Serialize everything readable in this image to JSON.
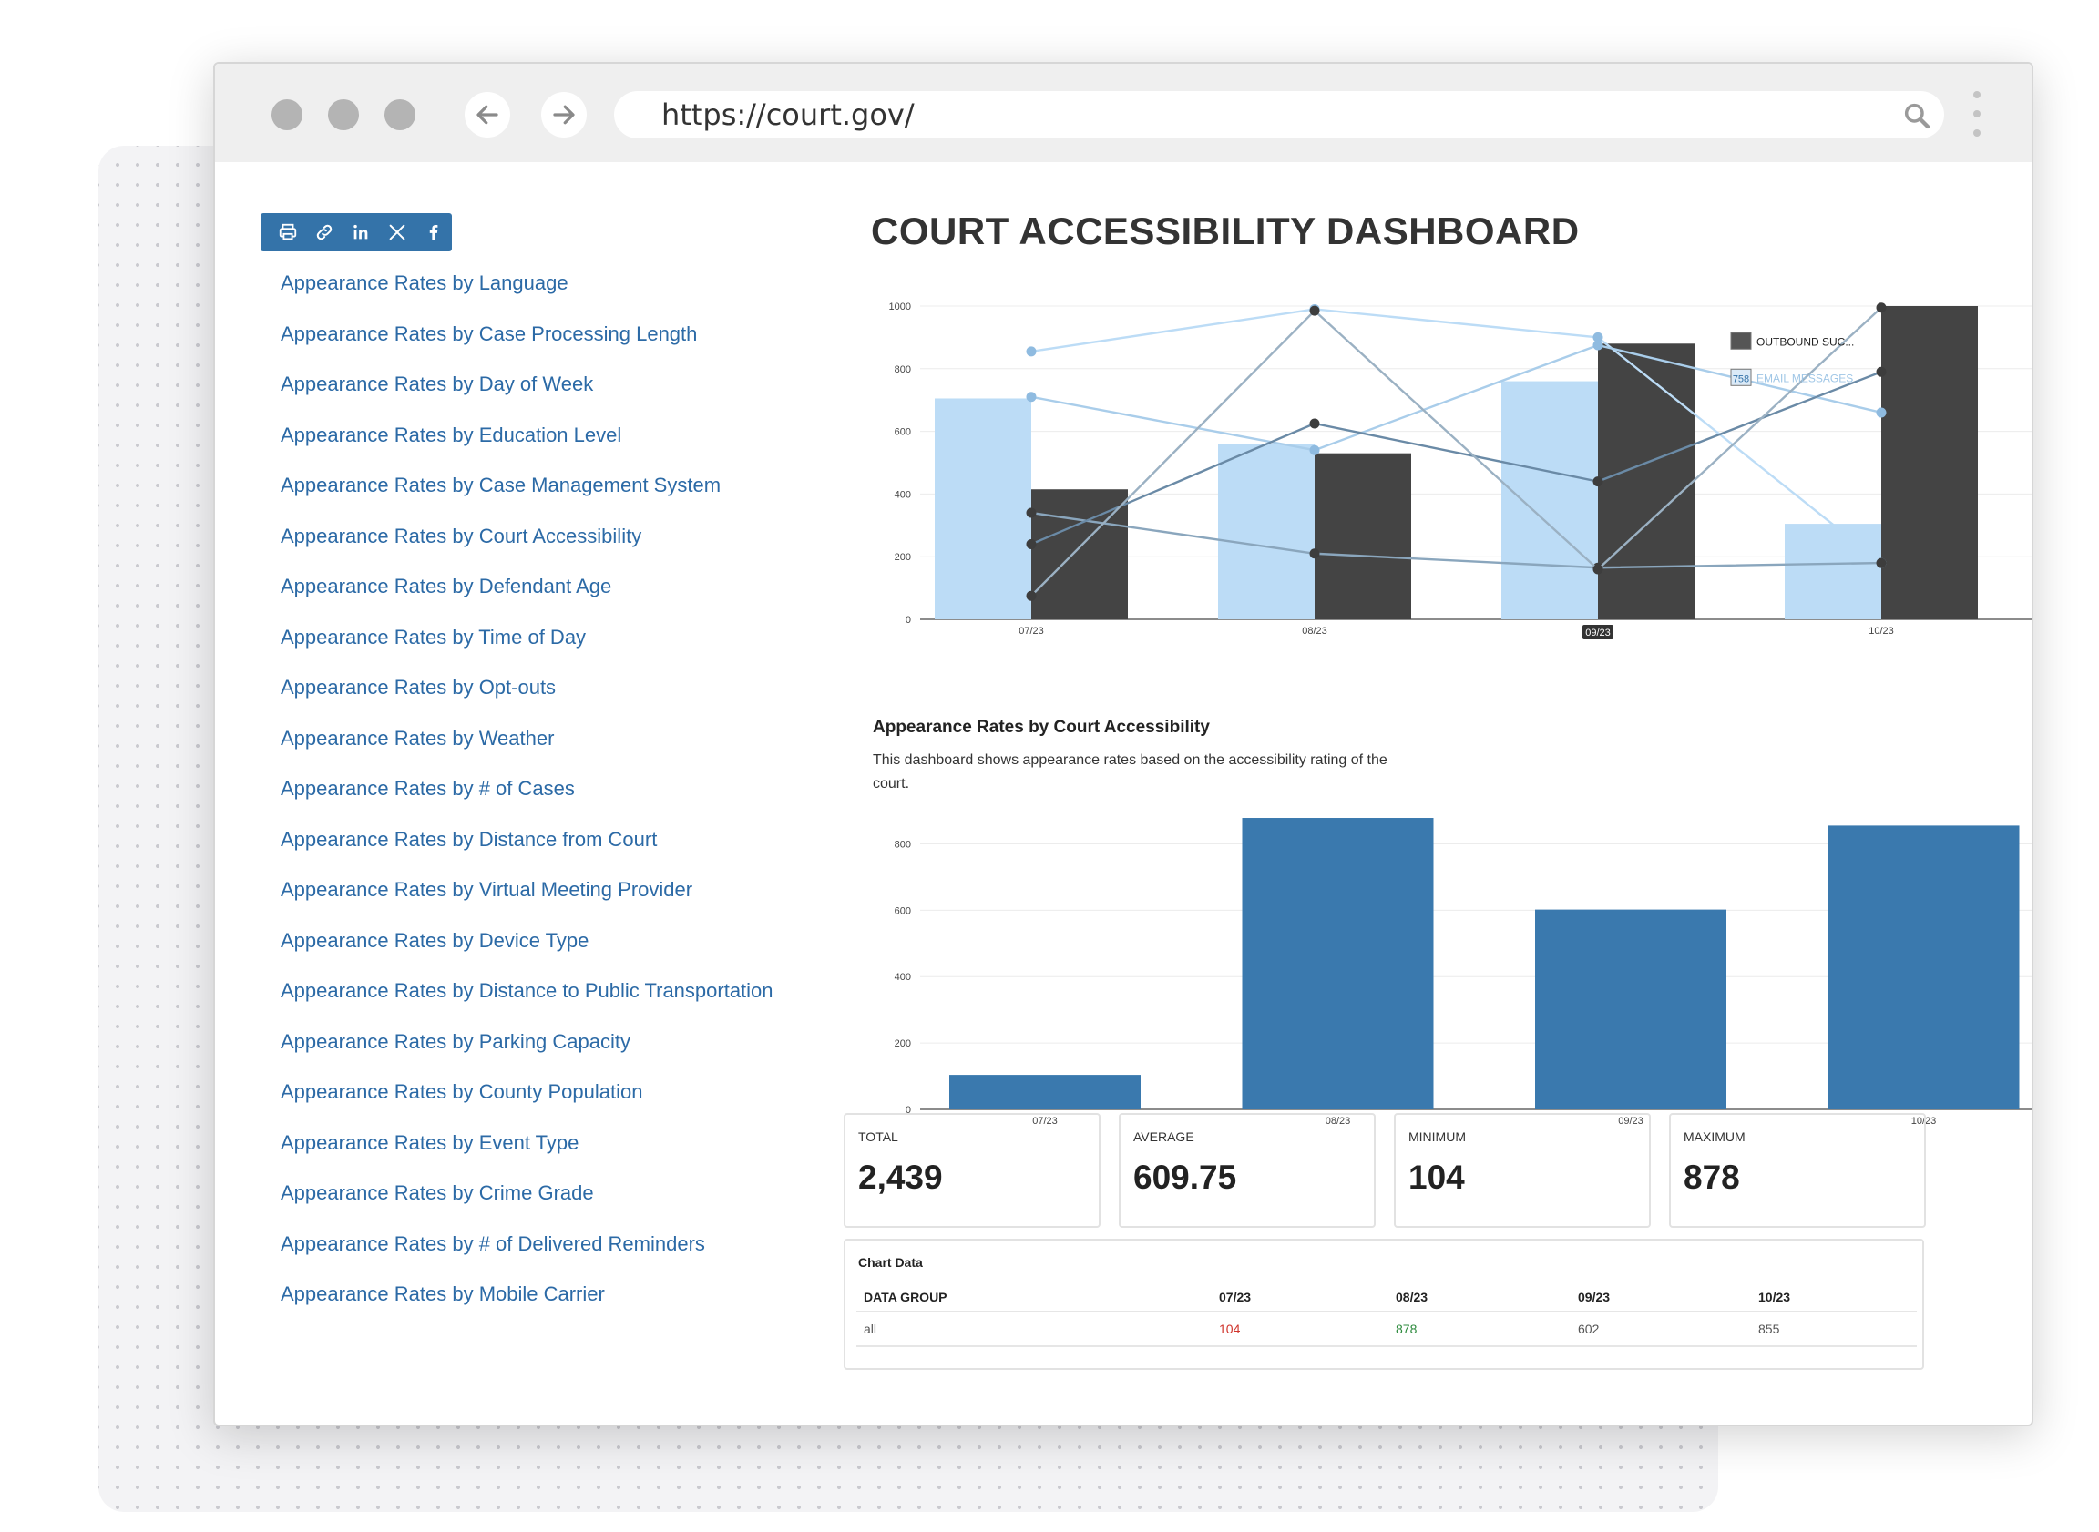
{
  "browser": {
    "url": "https://court.gov/"
  },
  "share": {
    "items": [
      "print-icon",
      "link-icon",
      "linkedin-icon",
      "x-icon",
      "facebook-icon"
    ]
  },
  "sidebar": {
    "items": [
      "Appearance Rates by Language",
      "Appearance Rates by Case Processing Length",
      "Appearance Rates by Day of Week",
      "Appearance Rates by Education Level",
      "Appearance Rates by Case Management System",
      "Appearance Rates by Court Accessibility",
      "Appearance Rates by Defendant Age",
      "Appearance Rates by Time of Day",
      "Appearance Rates by Opt-outs",
      "Appearance Rates by Weather",
      "Appearance Rates by # of Cases",
      "Appearance Rates by Distance from Court",
      "Appearance Rates by Virtual Meeting Provider",
      "Appearance Rates by Device Type",
      "Appearance Rates by Distance to Public Transportation",
      "Appearance Rates by Parking Capacity",
      "Appearance Rates by County Population",
      "Appearance Rates by Event Type",
      "Appearance Rates by Crime Grade",
      "Appearance Rates by # of Delivered Reminders",
      "Appearance Rates by Mobile Carrier"
    ]
  },
  "main": {
    "title": "COURT ACCESSIBILITY DASHBOARD",
    "section_title": "Appearance Rates by Court Accessibility",
    "section_desc": "This dashboard shows appearance rates based on the accessibility rating of the court."
  },
  "stats": [
    {
      "label": "TOTAL",
      "value": "2,439"
    },
    {
      "label": "AVERAGE",
      "value": "609.75"
    },
    {
      "label": "MINIMUM",
      "value": "104"
    },
    {
      "label": "MAXIMUM",
      "value": "878"
    }
  ],
  "table": {
    "title": "Chart Data",
    "headers": [
      "DATA GROUP",
      "07/23",
      "08/23",
      "09/23",
      "10/23"
    ],
    "rows": [
      {
        "group": "all",
        "values": [
          "104",
          "878",
          "602",
          "855"
        ]
      }
    ]
  },
  "chart_data": [
    {
      "type": "bar",
      "categories": [
        "07/23",
        "08/23",
        "09/23",
        "10/23"
      ],
      "ylim": [
        0,
        1000
      ],
      "yticks": [
        0,
        200,
        400,
        600,
        800,
        1000
      ],
      "series": [
        {
          "values": [
            705,
            560,
            760,
            305
          ],
          "color": "#bcdcf6",
          "kind": "bar"
        },
        {
          "name": "OUTBOUND SUC...",
          "values": [
            415,
            530,
            880,
            1000
          ],
          "color": "#444444",
          "kind": "bar"
        },
        {
          "values": [
            855,
            990,
            900,
            180
          ],
          "color": "#bcdcf6",
          "kind": "line"
        },
        {
          "name": "EMAIL MESSAGES",
          "values": [
            710,
            540,
            875,
            660
          ],
          "color": "#a9cdea",
          "kind": "line"
        },
        {
          "values": [
            340,
            210,
            165,
            180
          ],
          "color": "#8aa6bd",
          "kind": "line"
        },
        {
          "values": [
            240,
            625,
            440,
            790
          ],
          "color": "#6a8aa6",
          "kind": "line"
        },
        {
          "values": [
            75,
            985,
            160,
            995
          ],
          "color": "#9bb1c3",
          "kind": "line"
        }
      ],
      "tooltip": {
        "value": "758",
        "category": "09/23"
      }
    },
    {
      "type": "bar",
      "categories": [
        "07/23",
        "08/23",
        "09/23",
        "10/23"
      ],
      "ylim": [
        0,
        900
      ],
      "yticks": [
        0,
        200,
        400,
        600,
        800
      ],
      "series": [
        {
          "values": [
            104,
            878,
            602,
            855
          ],
          "color": "#3a79ae"
        }
      ]
    }
  ]
}
